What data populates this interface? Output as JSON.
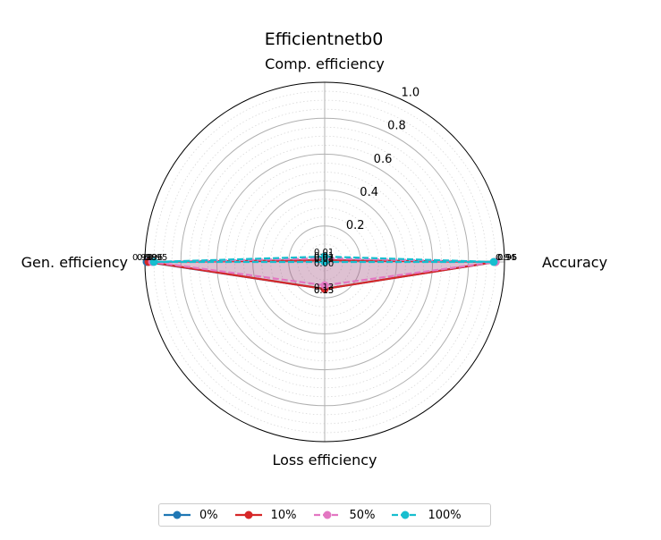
{
  "chart_data": {
    "type": "radar",
    "title": "Efficientnetb0",
    "axes": [
      "Accuracy",
      "Comp. efficiency",
      "Gen. efficiency",
      "Loss efficiency"
    ],
    "rlim": [
      0,
      1.0
    ],
    "r_ticks": [
      "0.2",
      "0.4",
      "0.6",
      "0.8",
      "1.0"
    ],
    "grid": true,
    "legend_position": "bottom",
    "series": [
      {
        "name": "0%",
        "color": "#1f77b4",
        "linestyle": "solid",
        "values": [
          0.95,
          0.01,
          0.99,
          0.15
        ],
        "value_labels": [
          "0.95",
          "0.01",
          "0.99",
          "0.15"
        ]
      },
      {
        "name": "10%",
        "color": "#d62728",
        "linestyle": "solid",
        "values": [
          0.95,
          0.01,
          0.98,
          0.15
        ],
        "value_labels": [
          "0.95",
          "0.01",
          "0.98",
          "0.15"
        ]
      },
      {
        "name": "50%",
        "color": "#e377c2",
        "linestyle": "dashed",
        "values": [
          0.95,
          0.02,
          0.96,
          0.13
        ],
        "value_labels": [
          "0.95",
          "0.02",
          "0.96",
          "0.13"
        ]
      },
      {
        "name": "100%",
        "color": "#17becf",
        "linestyle": "dashed",
        "values": [
          0.94,
          0.03,
          0.95,
          0.0
        ],
        "value_labels": [
          "0.94",
          "0.03",
          "0.95",
          "0.00"
        ]
      }
    ]
  }
}
